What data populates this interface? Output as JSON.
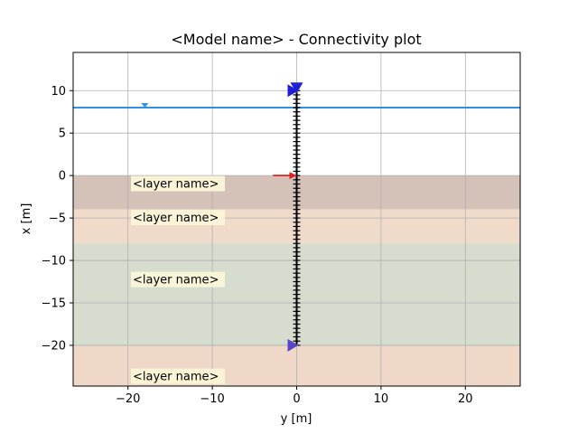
{
  "chart_data": {
    "type": "line",
    "title": "<Model name> - Connectivity plot",
    "xlabel": "y [m]",
    "ylabel": "x [m]",
    "xlim": [
      -26.5,
      26.5
    ],
    "ylim": [
      -24.8,
      14.5
    ],
    "grid": true,
    "x_ticks": [
      -20,
      -10,
      0,
      10,
      20
    ],
    "y_ticks": [
      10,
      5,
      0,
      -5,
      -10,
      -15,
      -20
    ],
    "layers": [
      {
        "label": "<layer name>",
        "top": 0,
        "bottom": -4,
        "color": "#d4c1b7"
      },
      {
        "label": "<layer name>",
        "top": -4,
        "bottom": -8,
        "color": "#f0dbca"
      },
      {
        "label": "<layer name>",
        "top": -8,
        "bottom": -20,
        "color": "#d6ddcf"
      },
      {
        "label": "<layer name>",
        "top": -20,
        "bottom": -24.8,
        "color": "#f0d8c9"
      }
    ],
    "water_level": {
      "y": 8,
      "marker_x": -18,
      "color": "#2e8fe6"
    },
    "pile": {
      "x": 0,
      "top": 10,
      "bottom": -20,
      "node_spacing": 0.5
    },
    "load_arrow": {
      "y": 0,
      "from_x": -2.8,
      "to_x": 0,
      "color": "#e02020"
    },
    "top_supports": {
      "y": 10,
      "color": "#1f1fd6"
    },
    "bottom_support": {
      "y": -20,
      "color": "#5a45c8"
    }
  }
}
